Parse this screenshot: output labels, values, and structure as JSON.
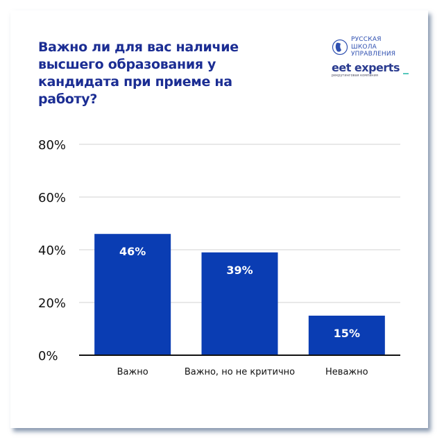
{
  "title": "Важно ли для вас наличие высшего образования у кандидата при приеме на работу?",
  "logo": {
    "school_lines": [
      "РУССКАЯ",
      "ШКОЛА",
      "УПРАВЛЕНИЯ"
    ],
    "brand": "eet experts",
    "brand_suffix": "_",
    "brand_sub": "рекрутинговая компания"
  },
  "chart_data": {
    "type": "bar",
    "categories": [
      "Важно",
      "Важно, но не критично",
      "Неважно"
    ],
    "values": [
      46,
      39,
      15
    ],
    "data_labels": [
      "46%",
      "39%",
      "15%"
    ],
    "yticks": [
      "0%",
      "20%",
      "40%",
      "60%",
      "80%"
    ],
    "ylim": [
      0,
      80
    ],
    "grid": true,
    "bar_color": "#0a3db3"
  }
}
